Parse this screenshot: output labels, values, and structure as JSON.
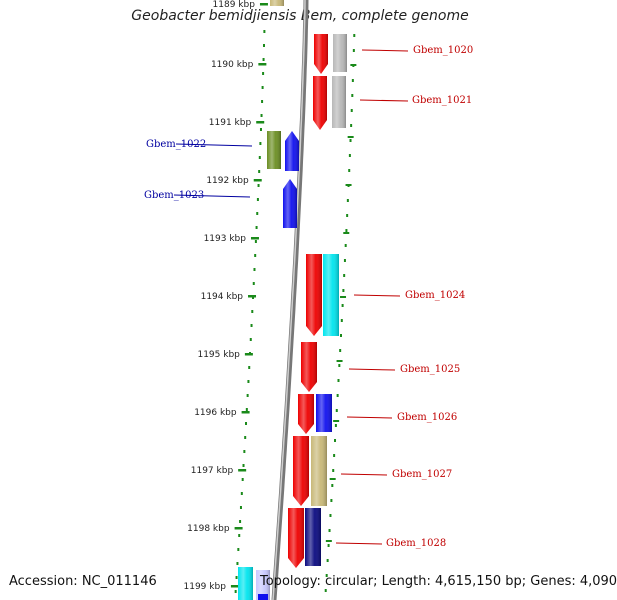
{
  "title": "Geobacter bemidjiensis Bem, complete genome",
  "footer": {
    "accession": "Accession: NC_011146",
    "topology": "Topology: circular; Length: 4,615,150 bp; Genes: 4,090"
  },
  "colors": {
    "red": "#ee0000",
    "grey": "#b8b8b8",
    "blue": "#1010ee",
    "olive": "#6b8e23",
    "cyan": "#00e5ee",
    "khaki": "#c8b878",
    "navy": "#0a0a80",
    "lavender": "#c8c8ff",
    "tick_green": "#1a8a1a",
    "backbone": "#888888",
    "label_red": "#c00000",
    "label_blue": "#0000a0"
  },
  "ticks": [
    {
      "label": "1189 kbp"
    },
    {
      "label": "1190 kbp"
    },
    {
      "label": "1191 kbp"
    },
    {
      "label": "1192 kbp"
    },
    {
      "label": "1193 kbp"
    },
    {
      "label": "1194 kbp"
    },
    {
      "label": "1195 kbp"
    },
    {
      "label": "1196 kbp"
    },
    {
      "label": "1197 kbp"
    },
    {
      "label": "1198 kbp"
    },
    {
      "label": "1199 kbp"
    }
  ],
  "genes": [
    {
      "name": "Gbem_1020",
      "strand": "+",
      "color": "red",
      "pair": "grey"
    },
    {
      "name": "Gbem_1021",
      "strand": "+",
      "color": "red",
      "pair": "grey"
    },
    {
      "name": "Gbem_1022",
      "strand": "-",
      "color": "blue",
      "pair": "olive"
    },
    {
      "name": "Gbem_1023",
      "strand": "-",
      "color": "blue"
    },
    {
      "name": "Gbem_1024",
      "strand": "+",
      "color": "red",
      "pair": "cyan"
    },
    {
      "name": "Gbem_1025",
      "strand": "+",
      "color": "red"
    },
    {
      "name": "Gbem_1026",
      "strand": "+",
      "color": "red",
      "pair": "blue"
    },
    {
      "name": "Gbem_1027",
      "strand": "+",
      "color": "red",
      "pair": "khaki"
    },
    {
      "name": "Gbem_1028",
      "strand": "+",
      "color": "red",
      "pair": "navy"
    }
  ]
}
